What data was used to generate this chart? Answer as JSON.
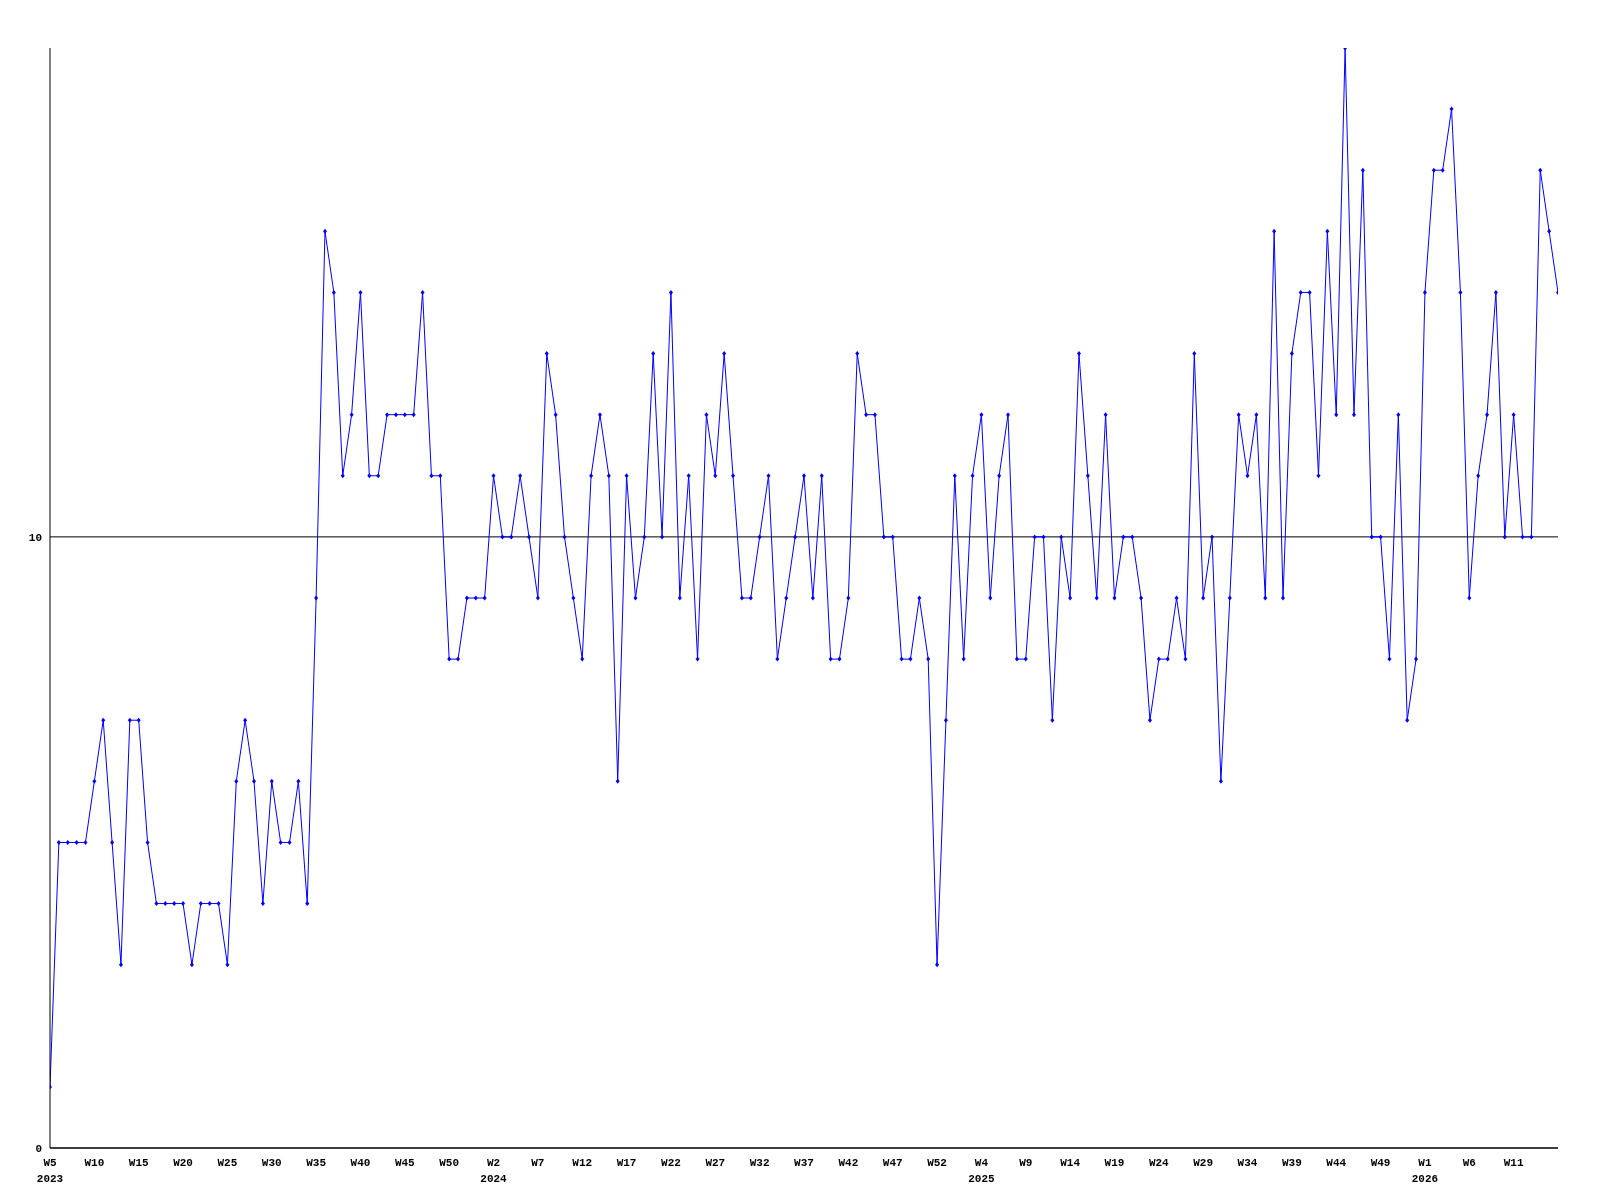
{
  "chart_data": {
    "type": "line",
    "categories": [
      "W5\n2023",
      null,
      null,
      null,
      null,
      "W10",
      null,
      null,
      null,
      null,
      "W15",
      null,
      null,
      null,
      null,
      "W20",
      null,
      null,
      null,
      null,
      "W25",
      null,
      null,
      null,
      null,
      "W30",
      null,
      null,
      null,
      null,
      "W35",
      null,
      null,
      null,
      null,
      "W40",
      null,
      null,
      null,
      null,
      "W45",
      null,
      null,
      null,
      null,
      "W50",
      null,
      null,
      null,
      null,
      "W2\n2024",
      null,
      null,
      null,
      null,
      "W7",
      null,
      null,
      null,
      null,
      "W12",
      null,
      null,
      null,
      null,
      "W17",
      null,
      null,
      null,
      null,
      "W22",
      null,
      null,
      null,
      null,
      "W27",
      null,
      null,
      null,
      null,
      "W32",
      null,
      null,
      null,
      null,
      "W37",
      null,
      null,
      null,
      null,
      "W42",
      null,
      null,
      null,
      null,
      "W47",
      null,
      null,
      null,
      null,
      "W52",
      null,
      null,
      null,
      null,
      "W4\n2025",
      null,
      null,
      null,
      null,
      "W9",
      null,
      null,
      null,
      null,
      "W14",
      null,
      null,
      null,
      null,
      "W19",
      null,
      null,
      null,
      null,
      "W24",
      null,
      null,
      null,
      null,
      "W29",
      null,
      null,
      null,
      null,
      "W34",
      null,
      null,
      null,
      null,
      "W39",
      null,
      null,
      null,
      null,
      "W44",
      null,
      null,
      null,
      null,
      "W49",
      null,
      null,
      null,
      null,
      "W1\n2026",
      null,
      null,
      null,
      null,
      "W6",
      null,
      null,
      null,
      null,
      "W11",
      null,
      null,
      null,
      null,
      null
    ],
    "series": [
      {
        "color": "#0000ff",
        "values": [
          1,
          5,
          5,
          5,
          5,
          6,
          7,
          5,
          3,
          7,
          7,
          5,
          4,
          4,
          4,
          4,
          3,
          4,
          4,
          4,
          3,
          6,
          7,
          6,
          4,
          6,
          5,
          5,
          6,
          4,
          9,
          15,
          14,
          11,
          12,
          14,
          11,
          11,
          12,
          12,
          12,
          12,
          14,
          11,
          11,
          8,
          8,
          9,
          9,
          9,
          11,
          10,
          10,
          11,
          10,
          9,
          13,
          12,
          10,
          9,
          8,
          11,
          12,
          11,
          6,
          11,
          9,
          10,
          13,
          10,
          14,
          9,
          11,
          8,
          12,
          11,
          13,
          11,
          9,
          9,
          10,
          11,
          8,
          9,
          10,
          11,
          9,
          11,
          8,
          8,
          9,
          13,
          12,
          12,
          10,
          10,
          8,
          8,
          9,
          8,
          3,
          7,
          11,
          8,
          11,
          12,
          9,
          11,
          12,
          8,
          8,
          10,
          10,
          7,
          10,
          9,
          13,
          11,
          9,
          12,
          9,
          10,
          10,
          9,
          7,
          8,
          8,
          9,
          8,
          13,
          9,
          10,
          6,
          9,
          12,
          11,
          12,
          9,
          15,
          9,
          13,
          14,
          14,
          11,
          15,
          12,
          18,
          12,
          16,
          10,
          10,
          8,
          12,
          7,
          8,
          14,
          16,
          16,
          17,
          14,
          9,
          11,
          12,
          14,
          10,
          12,
          10,
          10,
          16,
          15,
          14
        ]
      }
    ],
    "ylim": [
      0,
      18
    ],
    "yticks": [
      0,
      10
    ],
    "grid": "y",
    "marker": "diamond",
    "line_style": "solid"
  }
}
